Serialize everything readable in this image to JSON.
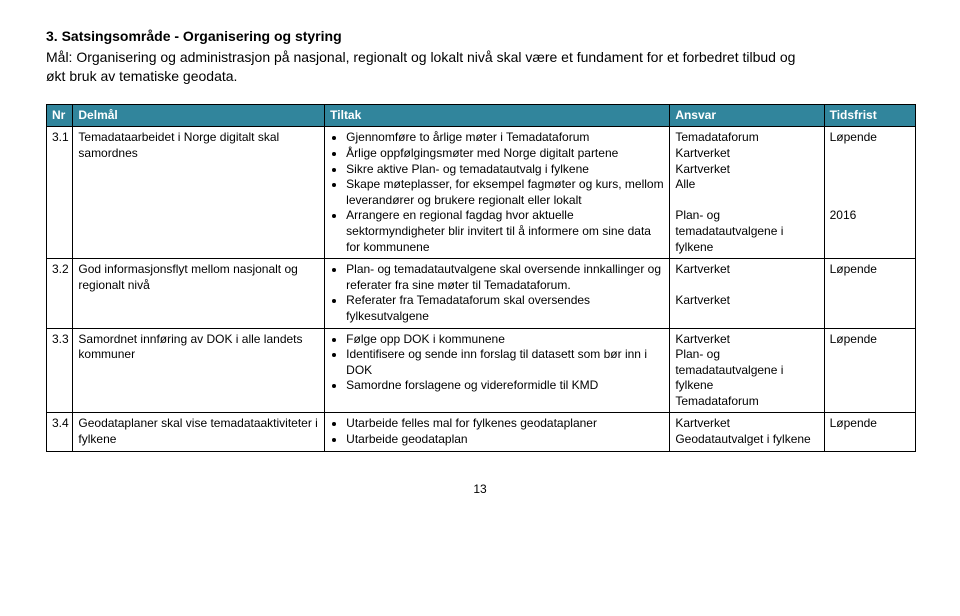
{
  "heading": "3. Satsingsområde - Organisering og styring",
  "intro": "Mål: Organisering og administrasjon på nasjonal, regionalt og lokalt nivå skal være et fundament for et forbedret tilbud og økt bruk av tematiske geodata.",
  "columns": {
    "nr": "Nr",
    "delmal": "Delmål",
    "tiltak": "Tiltak",
    "ansvar": "Ansvar",
    "tidsfrist": "Tidsfrist"
  },
  "rows": [
    {
      "nr": "3.1",
      "delmal": "Temadataarbeidet i Norge digitalt skal samordnes",
      "tiltak": [
        "Gjennomføre to årlige møter i Temadataforum",
        "Årlige oppfølgingsmøter med Norge digitalt partene",
        "Sikre aktive Plan- og temadatautvalg i fylkene",
        "Skape møteplasser, for eksempel fagmøter og kurs, mellom leverandører og brukere regionalt eller lokalt",
        "Arrangere en regional fagdag hvor aktuelle sektormyndigheter blir invitert til å informere om sine data for kommunene"
      ],
      "ansvar": [
        "Temadataforum",
        "Kartverket",
        "Kartverket",
        "Alle",
        "",
        "Plan- og temadatautvalgene i fylkene"
      ],
      "tidsfrist": [
        "Løpende",
        "",
        "",
        "",
        "",
        "2016"
      ]
    },
    {
      "nr": "3.2",
      "delmal": "God informasjonsflyt mellom nasjonalt og regionalt nivå",
      "tiltak": [
        "Plan- og temadatautvalgene skal oversende innkallinger og referater fra sine møter til Temadataforum.",
        "Referater fra Temadataforum skal oversendes fylkesutvalgene"
      ],
      "ansvar": [
        "Kartverket",
        "",
        "Kartverket"
      ],
      "tidsfrist": [
        "Løpende"
      ]
    },
    {
      "nr": "3.3",
      "delmal": "Samordnet innføring av DOK i alle landets kommuner",
      "tiltak": [
        "Følge opp DOK i kommunene",
        "Identifisere og sende inn forslag til datasett som bør inn i DOK",
        "Samordne forslagene og videreformidle til KMD"
      ],
      "ansvar": [
        "Kartverket",
        "Plan- og temadatautvalgene i fylkene",
        "Temadataforum"
      ],
      "tidsfrist": [
        "Løpende"
      ]
    },
    {
      "nr": "3.4",
      "delmal": "Geodataplaner skal vise temadataaktiviteter i fylkene",
      "tiltak": [
        "Utarbeide felles mal for fylkenes geodataplaner",
        "Utarbeide geodataplan"
      ],
      "ansvar": [
        "Kartverket",
        "Geodatautvalget i fylkene"
      ],
      "tidsfrist": [
        "Løpende"
      ]
    }
  ],
  "pageNumber": "13",
  "style": {
    "headerBg": "#31859c",
    "headerText": "#ffffff",
    "border": "#000000",
    "bodyText": "#000000",
    "colWidths": {
      "nr": 26,
      "delmal": 248,
      "tiltak": 340,
      "ansvar": 152,
      "tidsfrist": 90
    }
  }
}
